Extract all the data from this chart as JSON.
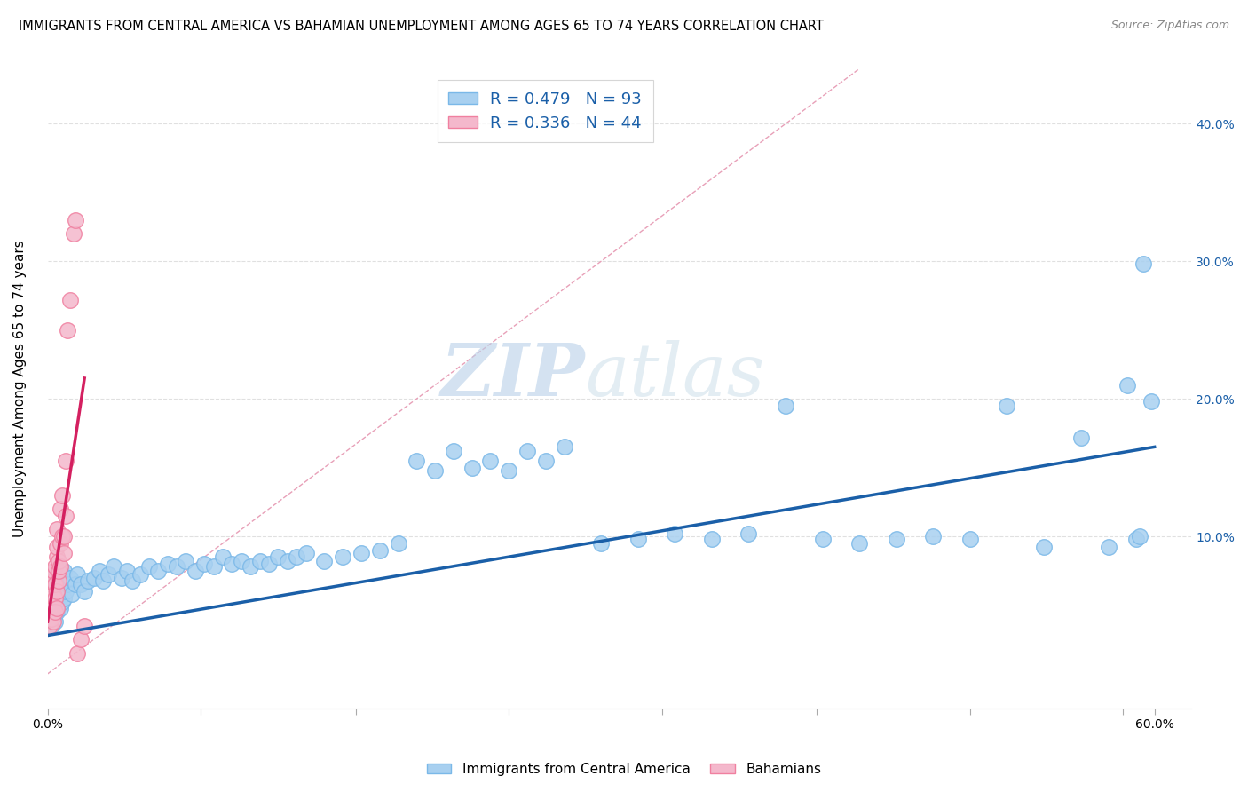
{
  "title": "IMMIGRANTS FROM CENTRAL AMERICA VS BAHAMIAN UNEMPLOYMENT AMONG AGES 65 TO 74 YEARS CORRELATION CHART",
  "source": "Source: ZipAtlas.com",
  "ylabel": "Unemployment Among Ages 65 to 74 years",
  "xlim": [
    0.0,
    0.62
  ],
  "ylim": [
    -0.025,
    0.44
  ],
  "xticks_minor": [
    0.0,
    0.083,
    0.167,
    0.25,
    0.333,
    0.417,
    0.5,
    0.583
  ],
  "xtick_labels_show": {
    "0.0": "0.0%",
    "0.60": "60.0%"
  },
  "yticks_right": [
    0.1,
    0.2,
    0.3,
    0.4
  ],
  "yticklabels_right": [
    "10.0%",
    "20.0%",
    "30.0%",
    "40.0%"
  ],
  "grid_yticks": [
    0.1,
    0.2,
    0.3,
    0.4
  ],
  "blue_color": "#a8d0f0",
  "pink_color": "#f4b8cc",
  "blue_edge_color": "#7ab8e8",
  "pink_edge_color": "#f080a0",
  "blue_line_color": "#1a5fa8",
  "pink_line_color": "#d42060",
  "dashed_line_color": "#e8a0b8",
  "R_blue": 0.479,
  "N_blue": 93,
  "R_pink": 0.336,
  "N_pink": 44,
  "legend_label_blue": "Immigrants from Central America",
  "legend_label_pink": "Bahamians",
  "blue_scatter_x": [
    0.001,
    0.001,
    0.002,
    0.002,
    0.002,
    0.003,
    0.003,
    0.003,
    0.003,
    0.004,
    0.004,
    0.004,
    0.005,
    0.005,
    0.005,
    0.006,
    0.006,
    0.007,
    0.007,
    0.008,
    0.008,
    0.009,
    0.009,
    0.01,
    0.011,
    0.012,
    0.013,
    0.015,
    0.016,
    0.018,
    0.02,
    0.022,
    0.025,
    0.028,
    0.03,
    0.033,
    0.036,
    0.04,
    0.043,
    0.046,
    0.05,
    0.055,
    0.06,
    0.065,
    0.07,
    0.075,
    0.08,
    0.085,
    0.09,
    0.095,
    0.1,
    0.105,
    0.11,
    0.115,
    0.12,
    0.125,
    0.13,
    0.135,
    0.14,
    0.15,
    0.16,
    0.17,
    0.18,
    0.19,
    0.2,
    0.21,
    0.22,
    0.23,
    0.24,
    0.25,
    0.26,
    0.27,
    0.28,
    0.3,
    0.32,
    0.34,
    0.36,
    0.38,
    0.4,
    0.42,
    0.44,
    0.46,
    0.48,
    0.5,
    0.52,
    0.54,
    0.56,
    0.575,
    0.585,
    0.59,
    0.592,
    0.594,
    0.598
  ],
  "blue_scatter_y": [
    0.04,
    0.055,
    0.035,
    0.048,
    0.06,
    0.042,
    0.052,
    0.062,
    0.07,
    0.038,
    0.055,
    0.065,
    0.045,
    0.058,
    0.068,
    0.05,
    0.063,
    0.048,
    0.068,
    0.052,
    0.072,
    0.055,
    0.075,
    0.06,
    0.065,
    0.07,
    0.058,
    0.065,
    0.072,
    0.065,
    0.06,
    0.068,
    0.07,
    0.075,
    0.068,
    0.072,
    0.078,
    0.07,
    0.075,
    0.068,
    0.072,
    0.078,
    0.075,
    0.08,
    0.078,
    0.082,
    0.075,
    0.08,
    0.078,
    0.085,
    0.08,
    0.082,
    0.078,
    0.082,
    0.08,
    0.085,
    0.082,
    0.085,
    0.088,
    0.082,
    0.085,
    0.088,
    0.09,
    0.095,
    0.155,
    0.148,
    0.162,
    0.15,
    0.155,
    0.148,
    0.162,
    0.155,
    0.165,
    0.095,
    0.098,
    0.102,
    0.098,
    0.102,
    0.195,
    0.098,
    0.095,
    0.098,
    0.1,
    0.098,
    0.195,
    0.092,
    0.172,
    0.092,
    0.21,
    0.098,
    0.1,
    0.298,
    0.198
  ],
  "pink_scatter_x": [
    0.001,
    0.001,
    0.001,
    0.001,
    0.001,
    0.002,
    0.002,
    0.002,
    0.002,
    0.002,
    0.002,
    0.003,
    0.003,
    0.003,
    0.003,
    0.003,
    0.004,
    0.004,
    0.004,
    0.004,
    0.005,
    0.005,
    0.005,
    0.005,
    0.005,
    0.006,
    0.006,
    0.006,
    0.007,
    0.007,
    0.007,
    0.008,
    0.008,
    0.009,
    0.009,
    0.01,
    0.01,
    0.011,
    0.012,
    0.014,
    0.015,
    0.016,
    0.018,
    0.02
  ],
  "pink_scatter_y": [
    0.045,
    0.055,
    0.035,
    0.06,
    0.04,
    0.048,
    0.058,
    0.065,
    0.04,
    0.052,
    0.07,
    0.048,
    0.058,
    0.038,
    0.068,
    0.075,
    0.055,
    0.065,
    0.045,
    0.078,
    0.06,
    0.085,
    0.048,
    0.092,
    0.105,
    0.068,
    0.075,
    0.082,
    0.078,
    0.095,
    0.12,
    0.1,
    0.13,
    0.088,
    0.1,
    0.115,
    0.155,
    0.25,
    0.272,
    0.32,
    0.33,
    0.015,
    0.025,
    0.035
  ],
  "blue_trend_x": [
    0.0,
    0.6
  ],
  "blue_trend_y": [
    0.028,
    0.165
  ],
  "pink_trend_x": [
    0.0,
    0.02
  ],
  "pink_trend_y": [
    0.038,
    0.215
  ],
  "diag_line_x": [
    0.0,
    0.44
  ],
  "diag_line_y": [
    0.0,
    0.44
  ],
  "watermark_zip": "ZIP",
  "watermark_atlas": "atlas",
  "grid_color": "#e0e0e0",
  "background_color": "#ffffff",
  "title_fontsize": 10.5,
  "axis_label_fontsize": 11,
  "tick_fontsize": 10,
  "legend_fontsize": 13
}
